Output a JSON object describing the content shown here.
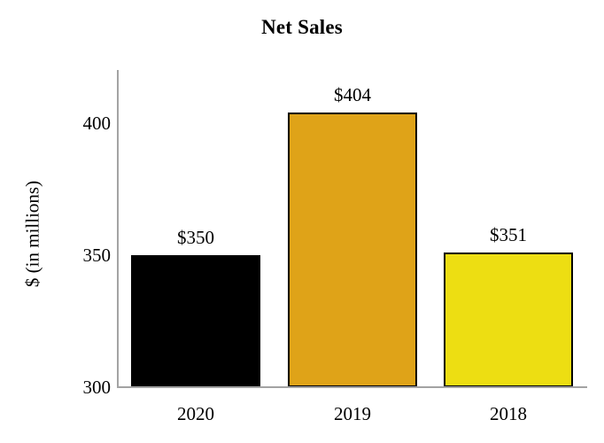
{
  "chart_data": {
    "type": "bar",
    "title": "Net Sales",
    "ylabel": "$ (in millions)",
    "xlabel": "",
    "categories": [
      "2020",
      "2019",
      "2018"
    ],
    "values": [
      350,
      404,
      351
    ],
    "data_labels": [
      "$350",
      "$404",
      "$351"
    ],
    "bar_colors": [
      "#000000",
      "#DFA318",
      "#EDDE12"
    ],
    "bar_border_color": "#000000",
    "axis_color": "#A3A3A3",
    "yticks": [
      300,
      350,
      400
    ],
    "ylim": [
      300,
      420
    ],
    "grid": false,
    "legend": "none"
  }
}
